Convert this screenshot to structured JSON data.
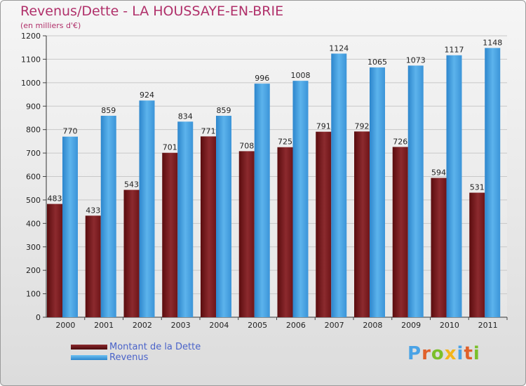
{
  "header": {
    "title": "Revenus/Dette - LA HOUSSAYE-EN-BRIE",
    "subtitle": "(en milliers d'€)"
  },
  "legend": [
    {
      "label": "Montant de la Dette",
      "color": "#7a1a1e"
    },
    {
      "label": "Revenus",
      "color": "#4aa3e6"
    }
  ],
  "brand": {
    "text": "Proxiti",
    "colors": [
      "#4aa3e6",
      "#e0602a",
      "#7bbf2a",
      "#f3b51c",
      "#4aa3e6",
      "#e0602a",
      "#7bbf2a"
    ]
  },
  "colors": {
    "title": "#b0306a",
    "dette_dark": "#5a0c0e",
    "dette_light": "#8c2a2e",
    "revenus_dark": "#2d86cc",
    "revenus_light": "#5cb3ec"
  },
  "chart_data": {
    "type": "bar",
    "title": "Revenus/Dette - LA HOUSSAYE-EN-BRIE",
    "subtitle": "(en milliers d'€)",
    "categories": [
      "2000",
      "2001",
      "2002",
      "2003",
      "2004",
      "2005",
      "2006",
      "2007",
      "2008",
      "2009",
      "2010",
      "2011"
    ],
    "series": [
      {
        "name": "Montant de la Dette",
        "values": [
          483,
          433,
          543,
          701,
          771,
          708,
          725,
          791,
          792,
          726,
          594,
          531
        ]
      },
      {
        "name": "Revenus",
        "values": [
          770,
          859,
          924,
          834,
          859,
          996,
          1008,
          1124,
          1065,
          1073,
          1117,
          1148
        ]
      }
    ],
    "ylim": [
      0,
      1200
    ],
    "yticks": [
      0,
      100,
      200,
      300,
      400,
      500,
      600,
      700,
      800,
      900,
      1000,
      1100,
      1200
    ],
    "xlabel": "",
    "ylabel": "",
    "grid": true,
    "legend_position": "bottom-left"
  }
}
